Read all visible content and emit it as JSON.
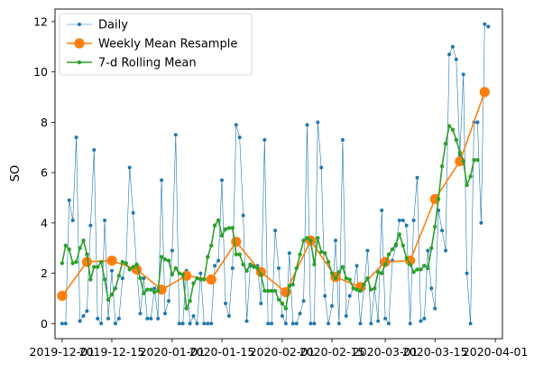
{
  "chart_data": {
    "type": "line",
    "ylabel": "SO",
    "xlim": [
      "2019-11-29",
      "2020-04-03"
    ],
    "ylim": [
      -0.6,
      12.5
    ],
    "x_ticks": [
      "2019-12-01",
      "2019-12-15",
      "2020-01-01",
      "2020-01-15",
      "2020-02-01",
      "2020-02-15",
      "2020-03-01",
      "2020-03-15",
      "2020-04-01"
    ],
    "x_tick_labels": [
      "2019-12-01",
      "2019-12-15",
      "2020-01-01",
      "2020-01-15",
      "2020-02-01",
      "2020-02-15",
      "2020-03-01",
      "2020-03-15",
      "2020-04-01"
    ],
    "y_ticks": [
      0,
      2,
      4,
      6,
      8,
      10,
      12
    ],
    "grid": false,
    "legend_position": "top-left",
    "series": [
      {
        "name": "Daily",
        "color": "#1f77b4",
        "style": "thin-line-small-markers",
        "start": "2019-12-01",
        "values": [
          0,
          0,
          4.9,
          4.1,
          7.4,
          0.1,
          0.3,
          0.5,
          3.9,
          6.9,
          0.2,
          0,
          4.1,
          0.2,
          2.1,
          0,
          0.2,
          1.8,
          2.4,
          6.2,
          4.4,
          2.2,
          0.4,
          1.8,
          0.2,
          0.2,
          1.4,
          0.2,
          5.7,
          0.4,
          0.9,
          2.9,
          7.5,
          0,
          0,
          2.1,
          0,
          0.3,
          0,
          2.0,
          0,
          0,
          0,
          2.3,
          2.5,
          5.7,
          0.8,
          0.3,
          2.2,
          7.9,
          7.4,
          4.3,
          0.1,
          2.3,
          2.3,
          2.3,
          0.8,
          7.3,
          0,
          0,
          3.7,
          2.2,
          0.3,
          0,
          2.8,
          0,
          0,
          0.4,
          0.9,
          7.9,
          0,
          0,
          8.0,
          6.2,
          1.1,
          0,
          0.7,
          3.3,
          0,
          7.3,
          0.3,
          1.1,
          1.4,
          2.3,
          0,
          1.4,
          2.9,
          0,
          1.4,
          0.1,
          4.5,
          0.2,
          0,
          2.5,
          3.1,
          4.1,
          4.1,
          3.9,
          0,
          4.1,
          5.8,
          0.1,
          0.2,
          2.9,
          1.4,
          0.6,
          4.5,
          3.7,
          2.9,
          10.7,
          11.0,
          10.5,
          6.7,
          9.9,
          2.0,
          0,
          8.0,
          8.0,
          4.0,
          11.9,
          11.8
        ]
      },
      {
        "name": "Weekly Mean Resample",
        "color": "#ff7f0e",
        "style": "line-large-markers",
        "x": [
          "2019-12-01",
          "2019-12-08",
          "2019-12-15",
          "2019-12-22",
          "2019-12-29",
          "2020-01-05",
          "2020-01-12",
          "2020-01-19",
          "2020-01-26",
          "2020-02-02",
          "2020-02-09",
          "2020-02-16",
          "2020-02-23",
          "2020-03-01",
          "2020-03-08",
          "2020-03-15",
          "2020-03-22",
          "2020-03-29"
        ],
        "values": [
          1.1,
          2.45,
          2.5,
          2.15,
          1.35,
          1.9,
          1.75,
          3.25,
          2.05,
          1.25,
          3.3,
          1.85,
          1.45,
          2.45,
          2.5,
          4.95,
          6.45,
          9.2
        ]
      },
      {
        "name": "7-d Rolling Mean",
        "color": "#2ca02c",
        "style": "line-small-markers",
        "start": "2019-12-01",
        "values": [
          2.4,
          3.1,
          2.95,
          2.4,
          2.45,
          3.0,
          3.3,
          2.75,
          1.75,
          2.25,
          2.25,
          2.45,
          1.75,
          0.95,
          1.15,
          1.4,
          1.9,
          2.45,
          2.4,
          2.15,
          2.25,
          2.35,
          1.8,
          1.2,
          1.35,
          1.35,
          1.25,
          1.3,
          2.65,
          2.55,
          2.5,
          1.95,
          2.2,
          2.0,
          1.95,
          0.6,
          0.9,
          1.6,
          1.8,
          1.75,
          1.75,
          2.65,
          3.1,
          3.9,
          4.1,
          3.5,
          3.75,
          3.8,
          3.8,
          2.75,
          2.75,
          2.35,
          2.1,
          2.35,
          2.25,
          2.2,
          1.95,
          1.3,
          1.3,
          1.3,
          1.3,
          0.95,
          0.8,
          0.6,
          1.5,
          1.55,
          2.2,
          2.75,
          3.3,
          3.4,
          3.3,
          2.35,
          3.4,
          2.85,
          2.8,
          2.45,
          2.0,
          1.8,
          2.05,
          2.25,
          1.8,
          1.75,
          1.4,
          1.35,
          1.3,
          1.55,
          1.8,
          1.35,
          1.4,
          2.05,
          2.0,
          2.35,
          2.75,
          2.95,
          3.15,
          3.55,
          3.1,
          2.6,
          2.35,
          2.05,
          2.15,
          2.15,
          2.3,
          2.2,
          3.0,
          3.85,
          4.95,
          6.25,
          7.15,
          7.85,
          7.7,
          7.3,
          6.8,
          6.45,
          5.5,
          5.85,
          6.5,
          6.5
        ]
      }
    ]
  }
}
